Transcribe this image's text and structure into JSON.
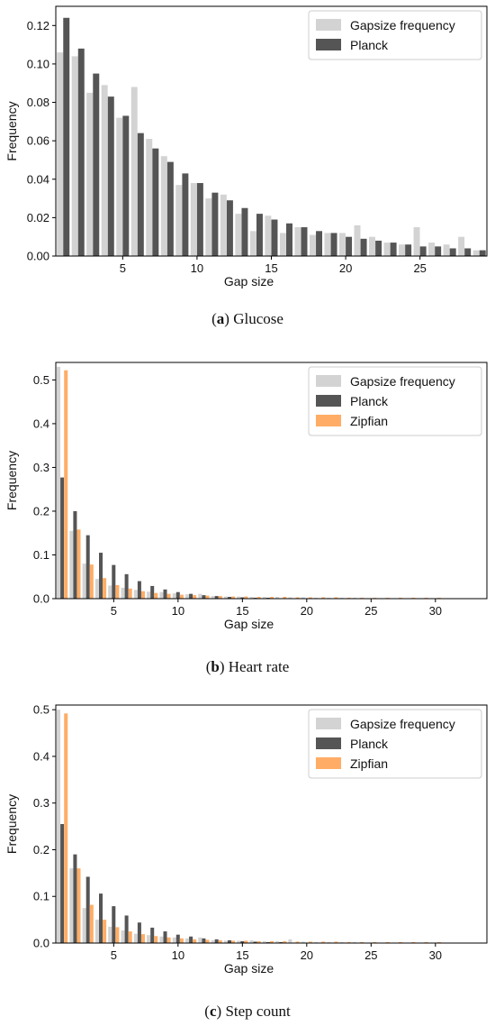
{
  "colors": {
    "gapsize": "#d3d3d3",
    "planck": "#555555",
    "zipfian": "#ffad66"
  },
  "chart_data": [
    {
      "type": "bar",
      "caption_letter": "a",
      "caption_text": "Glucose",
      "xlabel": "Gap size",
      "ylabel": "Frequency",
      "xlim": [
        0.5,
        29.5
      ],
      "ylim": [
        0,
        0.13
      ],
      "xticks": [
        5,
        10,
        15,
        20,
        25
      ],
      "yticks": [
        "0.00",
        "0.02",
        "0.04",
        "0.06",
        "0.08",
        "0.10",
        "0.12"
      ],
      "legend_position": "top-right",
      "x": [
        1,
        2,
        3,
        4,
        5,
        6,
        7,
        8,
        9,
        10,
        11,
        12,
        13,
        14,
        15,
        16,
        17,
        18,
        19,
        20,
        21,
        22,
        23,
        24,
        25,
        26,
        27,
        28,
        29
      ],
      "series": [
        {
          "name": "Gapsize frequency",
          "color_key": "gapsize",
          "values": [
            0.106,
            0.104,
            0.085,
            0.089,
            0.072,
            0.088,
            0.061,
            0.052,
            0.037,
            0.038,
            0.03,
            0.032,
            0.022,
            0.013,
            0.021,
            0.012,
            0.015,
            0.011,
            0.012,
            0.012,
            0.016,
            0.01,
            0.007,
            0.006,
            0.015,
            0.007,
            0.006,
            0.01,
            0.003
          ]
        },
        {
          "name": "Planck",
          "color_key": "planck",
          "values": [
            0.124,
            0.108,
            0.095,
            0.083,
            0.073,
            0.064,
            0.056,
            0.049,
            0.043,
            0.038,
            0.033,
            0.029,
            0.025,
            0.022,
            0.019,
            0.017,
            0.015,
            0.013,
            0.012,
            0.01,
            0.009,
            0.008,
            0.007,
            0.006,
            0.005,
            0.005,
            0.004,
            0.004,
            0.003
          ]
        }
      ]
    },
    {
      "type": "bar",
      "caption_letter": "b",
      "caption_text": "Heart rate",
      "xlabel": "Gap size",
      "ylabel": "Frequency",
      "xlim": [
        0.5,
        34
      ],
      "ylim": [
        0,
        0.54
      ],
      "xticks": [
        5,
        10,
        15,
        20,
        25,
        30
      ],
      "yticks": [
        "0.0",
        "0.1",
        "0.2",
        "0.3",
        "0.4",
        "0.5"
      ],
      "legend_position": "top-right",
      "x": [
        1,
        2,
        3,
        4,
        5,
        6,
        7,
        8,
        9,
        10,
        11,
        12,
        13,
        14,
        15,
        16,
        17,
        18,
        19,
        20,
        21,
        22,
        23,
        24,
        25,
        26,
        27,
        28,
        29,
        30,
        31,
        32,
        33
      ],
      "series": [
        {
          "name": "Gapsize frequency",
          "color_key": "gapsize",
          "values": [
            0.53,
            0.155,
            0.08,
            0.045,
            0.03,
            0.025,
            0.02,
            0.016,
            0.015,
            0.012,
            0.01,
            0.011,
            0.006,
            0.005,
            0.005,
            0.004,
            0.004,
            0.004,
            0.003,
            0.003,
            0.002,
            0.002,
            0.002,
            0.002,
            0.001,
            0.001,
            0.001,
            0.001,
            0.001,
            0.001,
            0.001,
            0.001,
            0.001
          ]
        },
        {
          "name": "Planck",
          "color_key": "planck",
          "values": [
            0.277,
            0.2,
            0.145,
            0.105,
            0.077,
            0.056,
            0.04,
            0.029,
            0.021,
            0.015,
            0.011,
            0.008,
            0.006,
            0.004,
            0.003,
            0.002,
            0.002,
            0.001,
            0.001,
            0.001,
            0.001,
            0.001,
            0.001,
            0.0005,
            0.0005,
            0.0005,
            0.0005,
            0.0005,
            0.0005,
            0.0005,
            0.0005,
            0.0005,
            0.0005
          ]
        },
        {
          "name": "Zipfian",
          "color_key": "zipfian",
          "values": [
            0.522,
            0.158,
            0.078,
            0.047,
            0.031,
            0.023,
            0.017,
            0.013,
            0.011,
            0.009,
            0.008,
            0.007,
            0.006,
            0.005,
            0.005,
            0.004,
            0.004,
            0.004,
            0.003,
            0.003,
            0.003,
            0.003,
            0.002,
            0.002,
            0.002,
            0.002,
            0.002,
            0.002,
            0.002,
            0.002,
            0.001,
            0.001,
            0.001
          ]
        }
      ]
    },
    {
      "type": "bar",
      "caption_letter": "c",
      "caption_text": "Step count",
      "xlabel": "Gap size",
      "ylabel": "Frequency",
      "xlim": [
        0.5,
        34
      ],
      "ylim": [
        0,
        0.51
      ],
      "xticks": [
        5,
        10,
        15,
        20,
        25,
        30
      ],
      "yticks": [
        "0.0",
        "0.1",
        "0.2",
        "0.3",
        "0.4",
        "0.5"
      ],
      "legend_position": "top-right",
      "x": [
        1,
        2,
        3,
        4,
        5,
        6,
        7,
        8,
        9,
        10,
        11,
        12,
        13,
        14,
        15,
        16,
        17,
        18,
        19,
        20,
        21,
        22,
        23,
        24,
        25,
        26,
        27,
        28,
        29,
        30,
        31,
        32,
        33
      ],
      "series": [
        {
          "name": "Gapsize frequency",
          "color_key": "gapsize",
          "values": [
            0.5,
            0.16,
            0.075,
            0.05,
            0.035,
            0.027,
            0.02,
            0.017,
            0.014,
            0.012,
            0.01,
            0.012,
            0.006,
            0.005,
            0.005,
            0.006,
            0.004,
            0.004,
            0.008,
            0.003,
            0.002,
            0.002,
            0.002,
            0.002,
            0.001,
            0.001,
            0.001,
            0.001,
            0.001,
            0.001,
            0.001,
            0.001,
            0.001
          ]
        },
        {
          "name": "Planck",
          "color_key": "planck",
          "values": [
            0.255,
            0.19,
            0.142,
            0.106,
            0.079,
            0.059,
            0.044,
            0.033,
            0.025,
            0.018,
            0.014,
            0.01,
            0.008,
            0.006,
            0.004,
            0.003,
            0.002,
            0.002,
            0.001,
            0.001,
            0.001,
            0.001,
            0.001,
            0.0005,
            0.0005,
            0.0005,
            0.0005,
            0.0005,
            0.0005,
            0.0005,
            0.0005,
            0.0005,
            0.0005
          ]
        },
        {
          "name": "Zipfian",
          "color_key": "zipfian",
          "values": [
            0.492,
            0.16,
            0.082,
            0.05,
            0.034,
            0.025,
            0.019,
            0.015,
            0.012,
            0.01,
            0.008,
            0.007,
            0.006,
            0.005,
            0.005,
            0.004,
            0.004,
            0.004,
            0.003,
            0.003,
            0.003,
            0.003,
            0.002,
            0.002,
            0.002,
            0.002,
            0.002,
            0.002,
            0.002,
            0.002,
            0.001,
            0.001,
            0.001
          ]
        }
      ]
    }
  ]
}
